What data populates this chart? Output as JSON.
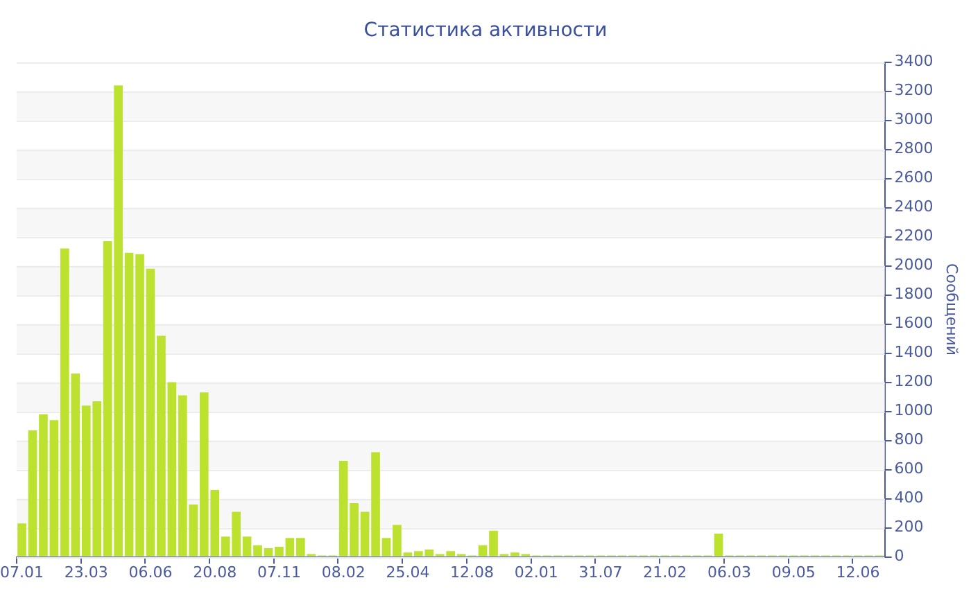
{
  "chart_data": {
    "type": "bar",
    "title": "Статистика активности",
    "ylabel": "Сообщений",
    "categories": [
      "07.01",
      null,
      null,
      null,
      null,
      null,
      "23.03",
      null,
      null,
      null,
      null,
      null,
      "06.06",
      null,
      null,
      null,
      null,
      null,
      "20.08",
      null,
      null,
      null,
      null,
      null,
      "07.11",
      null,
      null,
      null,
      null,
      null,
      "08.02",
      null,
      null,
      null,
      null,
      null,
      "25.04",
      null,
      null,
      null,
      null,
      null,
      "12.08",
      null,
      null,
      null,
      null,
      null,
      "02.01",
      null,
      null,
      null,
      null,
      null,
      "31.07",
      null,
      null,
      null,
      null,
      null,
      "21.02",
      null,
      null,
      null,
      null,
      null,
      "06.03",
      null,
      null,
      null,
      null,
      null,
      "09.05",
      null,
      null,
      null,
      null,
      null,
      "12.06",
      null,
      null
    ],
    "values": [
      230,
      870,
      980,
      940,
      2120,
      1260,
      1040,
      1070,
      2170,
      3240,
      2090,
      2080,
      1980,
      1520,
      1200,
      1110,
      360,
      1130,
      460,
      140,
      310,
      140,
      80,
      60,
      70,
      130,
      130,
      20,
      10,
      10,
      660,
      370,
      310,
      720,
      130,
      220,
      30,
      40,
      50,
      20,
      40,
      20,
      10,
      80,
      180,
      20,
      30,
      20,
      10,
      10,
      10,
      10,
      10,
      10,
      10,
      10,
      10,
      10,
      10,
      10,
      10,
      10,
      10,
      10,
      10,
      160,
      10,
      10,
      10,
      10,
      10,
      10,
      10,
      10,
      10,
      10,
      10,
      10,
      10,
      10,
      10
    ],
    "color": "#bde12f",
    "ylim": [
      0,
      3400
    ],
    "yticks": [
      0,
      200,
      400,
      600,
      800,
      1000,
      1200,
      1400,
      1600,
      1800,
      2000,
      2200,
      2400,
      2600,
      2800,
      3000,
      3200,
      3400
    ],
    "grid": true
  }
}
